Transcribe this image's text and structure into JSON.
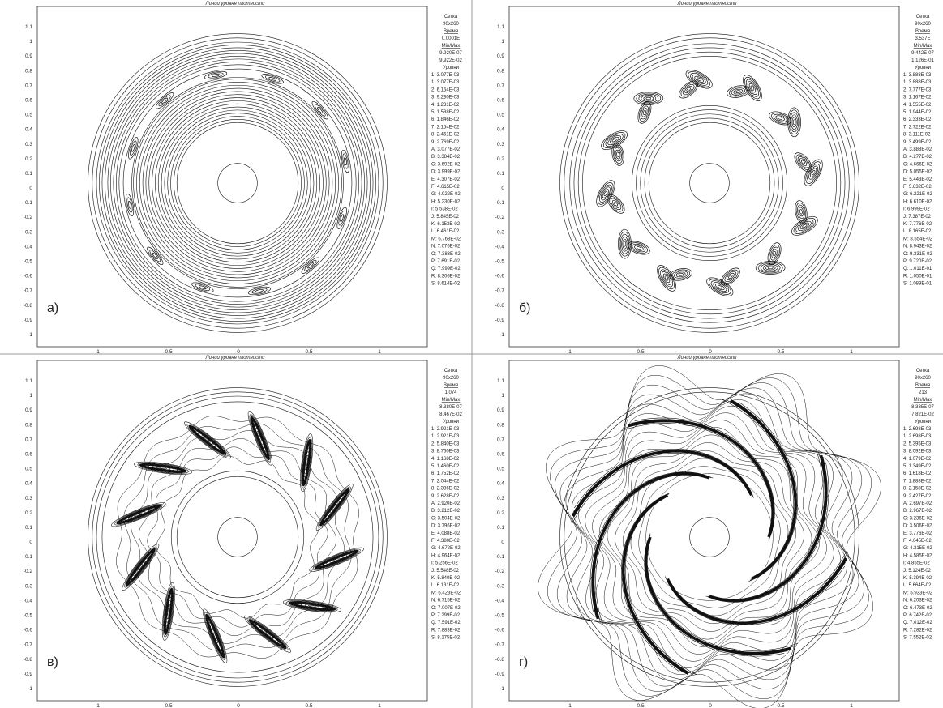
{
  "axes": {
    "y_ticks": [
      "1.1",
      "1",
      "0.9",
      "0.8",
      "0.7",
      "0.6",
      "0.5",
      "0.4",
      "0.3",
      "0.2",
      "0.1",
      "0",
      "-0.1",
      "-0.2",
      "-0.3",
      "-0.4",
      "-0.5",
      "-0.6",
      "-0.7",
      "-0.8",
      "-0.9",
      "-1"
    ],
    "x_ticks": [
      "-1",
      "-0.5",
      "0",
      "0.5",
      "1"
    ]
  },
  "panels": [
    {
      "title": "Линии уровня плотности",
      "label": "а)",
      "grid_heading": "Сетка",
      "grid": "90x260",
      "time_heading": "Время",
      "time": "0.0001E",
      "minmax_heading": "Min/Max",
      "min": "9.920E-07",
      "max": "9.922E-02",
      "levels_heading": "Уровни",
      "levels": [
        "1: 3.077E-03",
        "1: 3.077E-03",
        "2: 6.154E-03",
        "3: 9.230E-03",
        "4: 1.231E-02",
        "5: 1.538E-02",
        "6: 1.846E-02",
        "7: 2.154E-02",
        "8: 2.461E-02",
        "9: 2.769E-02",
        "A: 3.077E-02",
        "B: 3.384E-02",
        "C: 3.692E-02",
        "D: 3.999E-02",
        "E: 4.307E-02",
        "F: 4.615E-02",
        "G: 4.922E-02",
        "H: 5.230E-02",
        "I: 5.538E-02",
        "J: 5.845E-02",
        "K: 6.153E-02",
        "L: 6.461E-02",
        "M: 6.768E-02",
        "N: 7.076E-02",
        "O: 7.383E-02",
        "P: 7.691E-02",
        "Q: 7.999E-02",
        "R: 8.306E-02",
        "S: 8.614E-02"
      ]
    },
    {
      "title": "Линии уровня плотности",
      "label": "б)",
      "grid_heading": "Сетка",
      "grid": "90x260",
      "time_heading": "Время",
      "time": "3.537E",
      "minmax_heading": "Min/Max",
      "min": "9.442E-07",
      "max": "1.126E-01",
      "levels_heading": "Уровни",
      "levels": [
        "1: 3.888E-03",
        "1: 3.888E-03",
        "2: 7.777E-03",
        "3: 1.167E-02",
        "4: 1.555E-02",
        "5: 1.944E-02",
        "6: 2.333E-02",
        "7: 2.722E-02",
        "8: 3.111E-02",
        "9: 3.499E-02",
        "A: 3.888E-02",
        "B: 4.277E-02",
        "C: 4.666E-02",
        "D: 5.055E-02",
        "E: 5.443E-02",
        "F: 5.832E-02",
        "G: 6.221E-02",
        "H: 6.610E-02",
        "I: 6.999E-02",
        "J: 7.387E-02",
        "K: 7.776E-02",
        "L: 8.165E-02",
        "M: 8.554E-02",
        "N: 8.943E-02",
        "O: 9.331E-02",
        "P: 9.720E-02",
        "Q: 1.011E-01",
        "R: 1.050E-01",
        "S: 1.089E-01"
      ]
    },
    {
      "title": "Линии уровня плотности",
      "label": "в)",
      "grid_heading": "Сетка",
      "grid": "90x260",
      "time_heading": "Время",
      "time": "1.074",
      "minmax_heading": "Min/Max",
      "min": "8.380E-07",
      "max": "8.467E-02",
      "levels_heading": "Уровни",
      "levels": [
        "1: 2.921E-03",
        "1: 2.921E-03",
        "2: 5.840E-03",
        "3: 8.760E-03",
        "4: 1.168E-02",
        "5: 1.460E-02",
        "6: 1.752E-02",
        "7: 2.044E-02",
        "8: 2.336E-02",
        "9: 2.628E-02",
        "A: 2.920E-02",
        "B: 3.212E-02",
        "C: 3.504E-02",
        "D: 3.796E-02",
        "E: 4.088E-02",
        "F: 4.380E-02",
        "G: 4.672E-02",
        "H: 4.964E-02",
        "I: 5.256E-02",
        "J: 5.548E-02",
        "K: 5.840E-02",
        "L: 6.131E-02",
        "M: 6.423E-02",
        "N: 6.715E-02",
        "O: 7.007E-02",
        "P: 7.299E-02",
        "Q: 7.591E-02",
        "R: 7.883E-02",
        "S: 8.175E-02"
      ]
    },
    {
      "title": "Линии уровня плотности",
      "label": "г)",
      "grid_heading": "Сетка",
      "grid": "90x260",
      "time_heading": "Время",
      "time": "213",
      "minmax_heading": "Min/Max",
      "min": "8.385E-07",
      "max": "7.821E-02",
      "levels_heading": "Уровни",
      "levels": [
        "1: 2.698E-03",
        "1: 2.698E-03",
        "2: 5.395E-03",
        "3: 8.092E-03",
        "4: 1.079E-02",
        "5: 1.349E-02",
        "6: 1.618E-02",
        "7: 1.888E-02",
        "8: 2.158E-02",
        "9: 2.427E-02",
        "A: 2.697E-02",
        "B: 2.967E-02",
        "C: 3.236E-02",
        "D: 3.506E-02",
        "E: 3.776E-02",
        "F: 4.045E-02",
        "G: 4.315E-02",
        "H: 4.585E-02",
        "I: 4.855E-02",
        "J: 5.124E-02",
        "K: 5.394E-02",
        "L: 5.664E-02",
        "M: 5.933E-02",
        "N: 6.203E-02",
        "O: 6.473E-02",
        "P: 6.742E-02",
        "Q: 7.012E-02",
        "R: 7.282E-02",
        "S: 7.552E-02"
      ]
    }
  ]
}
